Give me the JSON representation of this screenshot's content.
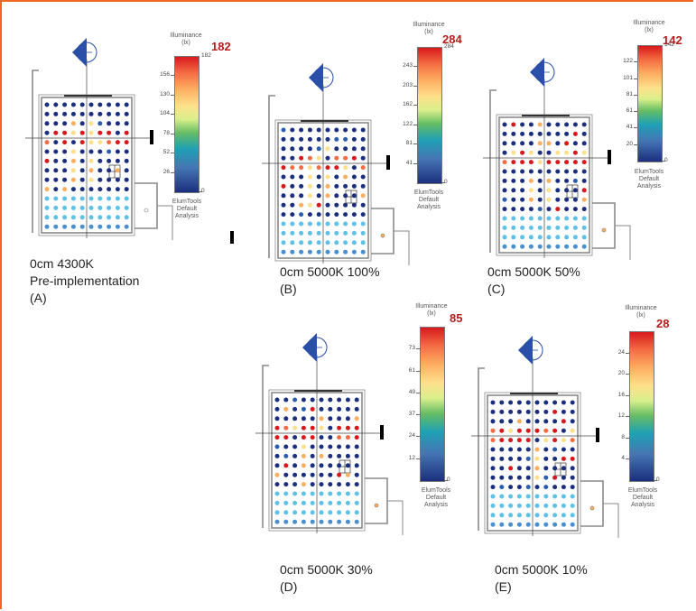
{
  "colors": {
    "frame": "#f26522",
    "max_label": "#b71c1c",
    "wall": "#8a8a8a",
    "dot_palette": [
      "#1c2f7e",
      "#2b5fae",
      "#4a8fd0",
      "#5fc1e6",
      "#66bd63",
      "#fee08b",
      "#fdae61",
      "#f46d43",
      "#d7191c"
    ]
  },
  "legend_common": {
    "title_line1": "Illuminance",
    "title_line2": "(lx)",
    "analysis_lines": [
      "ElumTools",
      "Default",
      "Analysis"
    ]
  },
  "panels": [
    {
      "id": "A",
      "caption_lines": [
        "0cm 4300K",
        "Pre-implementation",
        "(A)"
      ],
      "max_label": "182",
      "max_small": "182",
      "ticks": [
        "156",
        "130",
        "104",
        "78",
        "52",
        "26",
        "0"
      ],
      "icon": "compass-north-icon"
    },
    {
      "id": "B",
      "caption_lines": [
        "0cm 5000K 100%",
        "(B)"
      ],
      "max_label": "284",
      "max_small": "284",
      "ticks": [
        "243",
        "203",
        "162",
        "122",
        "81",
        "41",
        "0"
      ],
      "icon": "compass-north-icon"
    },
    {
      "id": "C",
      "caption_lines": [
        "0cm 5000K 50%",
        "(C)"
      ],
      "max_label": "142",
      "max_small": "142",
      "ticks": [
        "122",
        "101",
        "81",
        "61",
        "41",
        "20",
        "0"
      ],
      "icon": "compass-north-icon"
    },
    {
      "id": "D",
      "caption_lines": [
        "0cm 5000K 30%",
        "(D)"
      ],
      "max_label": "85",
      "max_small": "",
      "ticks": [
        "73",
        "61",
        "49",
        "37",
        "24",
        "12",
        "0"
      ],
      "icon": "compass-north-icon"
    },
    {
      "id": "E",
      "caption_lines": [
        "0cm 5000K 10%",
        "(E)"
      ],
      "max_label": "28",
      "max_small": "",
      "ticks": [
        "24",
        "20",
        "16",
        "12",
        "8",
        "4",
        "0"
      ],
      "icon": "compass-north-icon"
    }
  ]
}
